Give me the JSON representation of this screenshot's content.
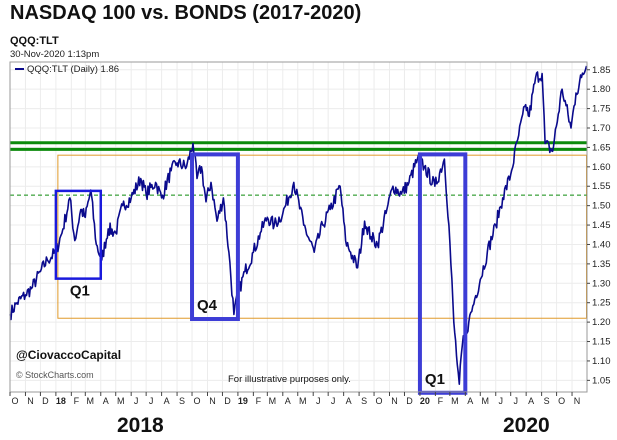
{
  "title": "NASDAQ 100 vs. BONDS (2017-2020)",
  "symbol": "QQQ:TLT",
  "timestamp": "30-Nov-2020 1:13pm",
  "watermark": "@CiovaccoCapital",
  "credit": "© StockCharts.com",
  "note": "For illustrative purposes only.",
  "year_labels": [
    "2018",
    "2020"
  ],
  "colors": {
    "series": "#0a0a8c",
    "box": "#3d3dd6",
    "green": "#0c8a0c",
    "orange": "#e09a2a",
    "axis": "#444444"
  },
  "chart_data": {
    "type": "line",
    "title": "NASDAQ 100 vs. BONDS (2017-2020)",
    "legend": {
      "label": "QQQ:TLT (Daily) 1.86",
      "placement": "top-left"
    },
    "x_tick_labels": [
      "O",
      "N",
      "D",
      "18",
      "F",
      "M",
      "A",
      "M",
      "J",
      "J",
      "A",
      "S",
      "O",
      "N",
      "D",
      "19",
      "F",
      "M",
      "A",
      "M",
      "J",
      "J",
      "A",
      "S",
      "O",
      "N",
      "D",
      "20",
      "F",
      "M",
      "A",
      "M",
      "J",
      "J",
      "A",
      "S",
      "O",
      "N"
    ],
    "xlim": [
      "2017-10-01",
      "2020-12-01"
    ],
    "ylim": [
      1.02,
      1.87
    ],
    "y_ticks": [
      1.05,
      1.1,
      1.15,
      1.2,
      1.25,
      1.3,
      1.35,
      1.4,
      1.45,
      1.5,
      1.55,
      1.6,
      1.65,
      1.7,
      1.75,
      1.8,
      1.85
    ],
    "grid": true,
    "series": [
      {
        "name": "QQQ:TLT (Daily)",
        "points": [
          [
            "2017-10-01",
            1.22
          ],
          [
            "2017-10-15",
            1.25
          ],
          [
            "2017-11-01",
            1.27
          ],
          [
            "2017-11-15",
            1.29
          ],
          [
            "2017-12-01",
            1.33
          ],
          [
            "2017-12-15",
            1.36
          ],
          [
            "2018-01-01",
            1.38
          ],
          [
            "2018-01-15",
            1.44
          ],
          [
            "2018-01-29",
            1.52
          ],
          [
            "2018-02-08",
            1.41
          ],
          [
            "2018-02-20",
            1.49
          ],
          [
            "2018-03-01",
            1.47
          ],
          [
            "2018-03-12",
            1.54
          ],
          [
            "2018-03-23",
            1.4
          ],
          [
            "2018-04-03",
            1.36
          ],
          [
            "2018-04-16",
            1.44
          ],
          [
            "2018-05-01",
            1.43
          ],
          [
            "2018-05-15",
            1.5
          ],
          [
            "2018-06-01",
            1.52
          ],
          [
            "2018-06-20",
            1.57
          ],
          [
            "2018-07-01",
            1.53
          ],
          [
            "2018-07-20",
            1.56
          ],
          [
            "2018-08-01",
            1.52
          ],
          [
            "2018-08-20",
            1.59
          ],
          [
            "2018-09-01",
            1.61
          ],
          [
            "2018-09-20",
            1.6
          ],
          [
            "2018-10-03",
            1.66
          ],
          [
            "2018-10-11",
            1.57
          ],
          [
            "2018-10-20",
            1.6
          ],
          [
            "2018-10-29",
            1.51
          ],
          [
            "2018-11-08",
            1.56
          ],
          [
            "2018-11-20",
            1.46
          ],
          [
            "2018-12-03",
            1.52
          ],
          [
            "2018-12-14",
            1.38
          ],
          [
            "2018-12-24",
            1.22
          ],
          [
            "2019-01-03",
            1.28
          ],
          [
            "2019-01-15",
            1.33
          ],
          [
            "2019-02-01",
            1.38
          ],
          [
            "2019-02-15",
            1.43
          ],
          [
            "2019-03-01",
            1.47
          ],
          [
            "2019-03-15",
            1.45
          ],
          [
            "2019-04-01",
            1.48
          ],
          [
            "2019-04-23",
            1.56
          ],
          [
            "2019-05-13",
            1.45
          ],
          [
            "2019-06-03",
            1.38
          ],
          [
            "2019-06-20",
            1.45
          ],
          [
            "2019-07-05",
            1.49
          ],
          [
            "2019-07-25",
            1.55
          ],
          [
            "2019-08-05",
            1.41
          ],
          [
            "2019-08-15",
            1.38
          ],
          [
            "2019-08-29",
            1.34
          ],
          [
            "2019-09-12",
            1.46
          ],
          [
            "2019-09-25",
            1.42
          ],
          [
            "2019-10-08",
            1.4
          ],
          [
            "2019-10-25",
            1.48
          ],
          [
            "2019-11-08",
            1.55
          ],
          [
            "2019-11-25",
            1.53
          ],
          [
            "2019-12-10",
            1.56
          ],
          [
            "2019-12-27",
            1.62
          ],
          [
            "2020-01-10",
            1.6
          ],
          [
            "2020-01-31",
            1.55
          ],
          [
            "2020-02-19",
            1.62
          ],
          [
            "2020-02-28",
            1.45
          ],
          [
            "2020-03-09",
            1.2
          ],
          [
            "2020-03-16",
            1.09
          ],
          [
            "2020-03-20",
            1.04
          ],
          [
            "2020-03-26",
            1.14
          ],
          [
            "2020-04-08",
            1.2
          ],
          [
            "2020-04-20",
            1.26
          ],
          [
            "2020-05-01",
            1.31
          ],
          [
            "2020-05-15",
            1.38
          ],
          [
            "2020-06-01",
            1.45
          ],
          [
            "2020-06-15",
            1.52
          ],
          [
            "2020-07-01",
            1.58
          ],
          [
            "2020-07-15",
            1.67
          ],
          [
            "2020-07-31",
            1.76
          ],
          [
            "2020-08-07",
            1.73
          ],
          [
            "2020-08-20",
            1.83
          ],
          [
            "2020-09-02",
            1.84
          ],
          [
            "2020-09-08",
            1.66
          ],
          [
            "2020-09-23",
            1.64
          ],
          [
            "2020-10-12",
            1.8
          ],
          [
            "2020-10-30",
            1.7
          ],
          [
            "2020-11-09",
            1.79
          ],
          [
            "2020-11-20",
            1.83
          ],
          [
            "2020-11-30",
            1.86
          ]
        ]
      }
    ],
    "reference_lines": [
      {
        "y": 1.645,
        "style": "solid",
        "color": "#0c8a0c"
      },
      {
        "y": 1.662,
        "style": "solid",
        "color": "#0c8a0c"
      },
      {
        "y": 1.527,
        "style": "dashed",
        "color": "#0c8a0c"
      }
    ],
    "ranges": [
      {
        "x": [
          "2018-01-05",
          "2020-11-30"
        ],
        "y": [
          1.21,
          1.63
        ],
        "style": "thin",
        "color": "#e09a2a"
      }
    ],
    "highlight_boxes": [
      {
        "label": "Q1",
        "x": [
          "2018-01-01",
          "2018-04-01"
        ],
        "y": [
          1.312,
          1.538
        ],
        "label_pos": "below"
      },
      {
        "label": "Q4",
        "x": [
          "2018-10-01",
          "2019-01-01"
        ],
        "y": [
          1.208,
          1.632
        ],
        "label_pos": "inside-bottom"
      },
      {
        "label": "Q1",
        "x": [
          "2020-01-01",
          "2020-04-01"
        ],
        "y": [
          1.018,
          1.632
        ],
        "label_pos": "inside-bottom"
      }
    ]
  }
}
